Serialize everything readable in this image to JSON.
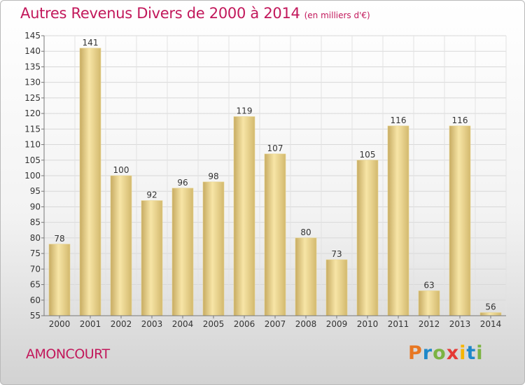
{
  "header": {
    "title": "Autres Revenus Divers de 2000 à 2014",
    "unit": "(en milliers d'€)"
  },
  "footer": {
    "commune": "AMONCOURT",
    "brand": "Proxiti",
    "brand_colors": [
      "#e87722",
      "#1e88c9",
      "#7cb342",
      "#e53935",
      "#f7b500",
      "#1e88c9",
      "#7cb342"
    ]
  },
  "colors": {
    "title": "#c2185b",
    "bar_light": "#f6e3a3",
    "bar_dark": "#c4a85e"
  },
  "chart_data": {
    "type": "bar",
    "categories": [
      "2000",
      "2001",
      "2002",
      "2003",
      "2004",
      "2005",
      "2006",
      "2007",
      "2008",
      "2009",
      "2010",
      "2011",
      "2012",
      "2013",
      "2014"
    ],
    "values": [
      78,
      141,
      100,
      92,
      96,
      98,
      119,
      107,
      80,
      73,
      105,
      116,
      63,
      116,
      56
    ],
    "ylim": [
      55,
      145
    ],
    "yticks": [
      55,
      60,
      65,
      70,
      75,
      80,
      85,
      90,
      95,
      100,
      105,
      110,
      115,
      120,
      125,
      130,
      135,
      140,
      145
    ],
    "grid": true,
    "xlabel": "",
    "ylabel": ""
  }
}
